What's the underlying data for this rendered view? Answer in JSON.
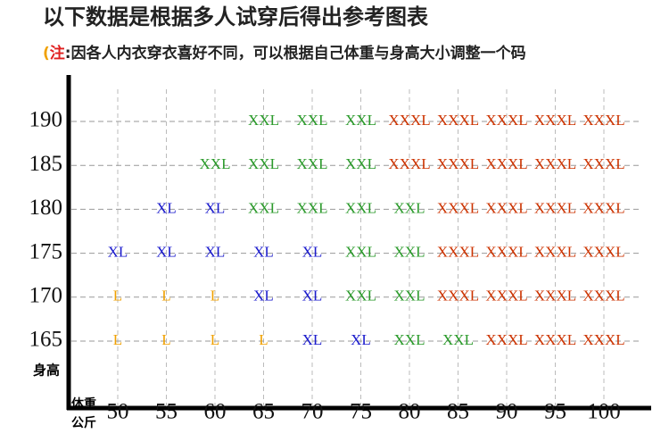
{
  "title": "以下数据是根据多人试穿后得出参考图表",
  "note": {
    "open": "(",
    "label": "注",
    "text": ":因各人内衣穿衣喜好不同，可以根据自己体重与身高大小调整一个码"
  },
  "y_label": "身高",
  "x_label": [
    "体重",
    "公斤"
  ],
  "size_colors": {
    "L": "#f0a000",
    "XL": "#1a1acc",
    "XXL": "#2a9a2a",
    "XXXL": "#cc3300"
  },
  "table": {
    "columns": [
      "50",
      "55",
      "60",
      "65",
      "70",
      "75",
      "80",
      "85",
      "90",
      "95",
      "100"
    ],
    "rows": [
      {
        "height": "190",
        "cells": [
          null,
          null,
          null,
          "XXL",
          "XXL",
          "XXL",
          "XXXL",
          "XXXL",
          "XXXL",
          "XXXL",
          "XXXL"
        ]
      },
      {
        "height": "185",
        "cells": [
          null,
          null,
          "XXL",
          "XXL",
          "XXL",
          "XXL",
          "XXXL",
          "XXXL",
          "XXXL",
          "XXXL",
          "XXXL"
        ]
      },
      {
        "height": "180",
        "cells": [
          null,
          "XL",
          "XL",
          "XXL",
          "XXL",
          "XXL",
          "XXL",
          "XXXL",
          "XXXL",
          "XXXL",
          "XXXL"
        ]
      },
      {
        "height": "175",
        "cells": [
          "XL",
          "XL",
          "XL",
          "XL",
          "XL",
          "XXL",
          "XXL",
          "XXXL",
          "XXXL",
          "XXXL",
          "XXXL"
        ]
      },
      {
        "height": "170",
        "cells": [
          "L",
          "L",
          "L",
          "XL",
          "XL",
          "XXL",
          "XXL",
          "XXXL",
          "XXXL",
          "XXXL",
          "XXXL"
        ]
      },
      {
        "height": "165",
        "cells": [
          "L",
          "L",
          "L",
          "L",
          "XL",
          "XL",
          "XXL",
          "XXL",
          "XXXL",
          "XXXL",
          "XXXL"
        ]
      }
    ]
  }
}
